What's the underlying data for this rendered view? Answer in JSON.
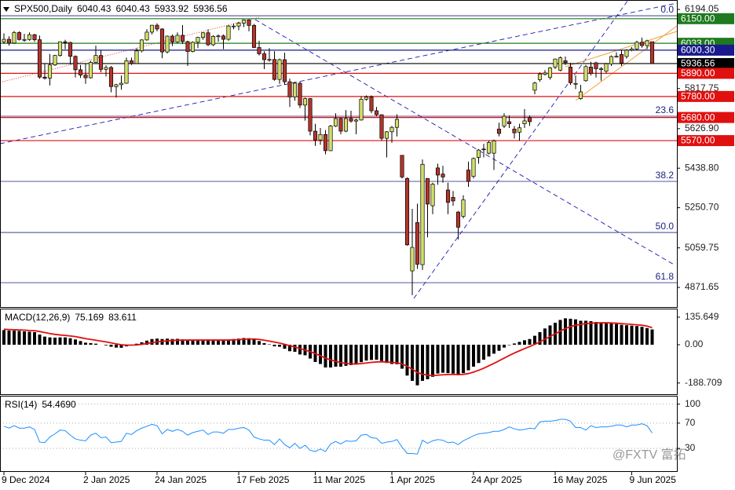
{
  "chart_data": [
    {
      "type": "candlestick",
      "symbol": "SPX500,Daily",
      "header_values": [
        6040.43,
        6040.43,
        5933.92,
        5936.56
      ],
      "categories": [
        "9 Dec 2024",
        null,
        null,
        null,
        null,
        null,
        null,
        null,
        null,
        null,
        null,
        null,
        null,
        null,
        null,
        null,
        "2 Jan 2025",
        null,
        null,
        null,
        null,
        null,
        null,
        null,
        null,
        null,
        null,
        null,
        null,
        null,
        "24 Jan 2025",
        null,
        null,
        null,
        null,
        null,
        null,
        null,
        null,
        null,
        null,
        null,
        null,
        null,
        null,
        null,
        "17 Feb 2025",
        null,
        null,
        null,
        null,
        null,
        null,
        null,
        null,
        null,
        null,
        null,
        null,
        null,
        null,
        "11 Mar 2025",
        null,
        null,
        null,
        null,
        null,
        null,
        null,
        null,
        null,
        null,
        null,
        null,
        null,
        null,
        "1 Apr 2025",
        null,
        null,
        null,
        null,
        null,
        null,
        null,
        null,
        null,
        null,
        null,
        null,
        null,
        null,
        null,
        "24 Apr 2025",
        null,
        null,
        null,
        null,
        null,
        null,
        null,
        null,
        null,
        null,
        null,
        null,
        null,
        null,
        null,
        "16 May 2025",
        null,
        null,
        null,
        null,
        null,
        null,
        null,
        null,
        null,
        null,
        null,
        null,
        null,
        null,
        "9 Jun 2025",
        null,
        null,
        null,
        null
      ],
      "open": [
        6040,
        6052,
        6034,
        6084,
        6051,
        6051,
        6074,
        6050,
        5872,
        5867,
        5930,
        5975,
        6040,
        6037,
        5971,
        5907,
        5882,
        5869,
        5942,
        5975,
        5909,
        5918,
        5827,
        5836,
        5843,
        5950,
        5937,
        5997,
        6049,
        6086,
        6119,
        6101,
        5992,
        6067,
        6039,
        6071,
        6041,
        5994,
        6038,
        6061,
        6083,
        6026,
        6066,
        6068,
        6052,
        6115,
        6115,
        6129,
        6144,
        6118,
        6013,
        5983,
        5955,
        5956,
        5861,
        5955,
        5850,
        5778,
        5843,
        5739,
        5770,
        5615,
        5573,
        5599,
        5522,
        5639,
        5675,
        5615,
        5675,
        5663,
        5668,
        5767,
        5777,
        5712,
        5693,
        5581,
        5612,
        5633,
        5500,
        5390,
        4950,
        5180,
        4980,
        5390,
        5260,
        5440,
        5411,
        5335,
        5300,
        5230,
        5210,
        5430,
        5400,
        5490,
        5530,
        5510,
        5510,
        5625,
        5640,
        5660,
        5625,
        5610,
        5650,
        5680,
        5810,
        5860,
        5885,
        5870,
        5920,
        5905,
        5950,
        5920,
        5840,
        5770,
        5855,
        5920,
        5940,
        5910,
        5900,
        5935,
        5970,
        5980,
        5970,
        6000,
        6006,
        6038,
        6022,
        6040.43
      ],
      "high": [
        6080,
        6066,
        6092,
        6090,
        6078,
        6085,
        6078,
        6070,
        5935,
        5982,
        5978,
        6042,
        6050,
        6040,
        5975,
        5930,
        5935,
        5950,
        6022,
        6000,
        5928,
        5925,
        5840,
        5880,
        5965,
        5965,
        6010,
        6052,
        6100,
        6120,
        6128,
        6105,
        6070,
        6075,
        6085,
        6120,
        6045,
        6042,
        6064,
        6086,
        6100,
        6072,
        6075,
        6075,
        6120,
        6127,
        6135,
        6147,
        6147,
        6125,
        6045,
        5995,
        6010,
        5995,
        5960,
        5988,
        5865,
        5850,
        5850,
        5775,
        5772,
        5650,
        5630,
        5620,
        5645,
        5700,
        5680,
        5715,
        5712,
        5675,
        5780,
        5785,
        5785,
        5730,
        5695,
        5615,
        5640,
        5695,
        5500,
        5395,
        5245,
        5270,
        5480,
        5390,
        5370,
        5460,
        5450,
        5370,
        5330,
        5235,
        5310,
        5470,
        5490,
        5530,
        5555,
        5570,
        5575,
        5655,
        5700,
        5690,
        5640,
        5650,
        5720,
        5690,
        5850,
        5895,
        5905,
        5920,
        5960,
        5970,
        5970,
        5940,
        5880,
        5835,
        5930,
        5945,
        5945,
        5920,
        5940,
        5975,
        5990,
        6000,
        6005,
        6015,
        6045,
        6060,
        6050,
        6040.43
      ],
      "low": [
        6030,
        6022,
        6030,
        6046,
        6040,
        6045,
        6040,
        5865,
        5860,
        5832,
        5925,
        5970,
        6005,
        5932,
        5870,
        5868,
        5840,
        5865,
        5940,
        5895,
        5875,
        5800,
        5775,
        5812,
        5840,
        5930,
        5935,
        5990,
        6045,
        6075,
        6090,
        5962,
        5985,
        6020,
        6035,
        6030,
        5925,
        5990,
        6010,
        6050,
        6020,
        6020,
        6040,
        6005,
        6045,
        6100,
        6095,
        6110,
        6090,
        6010,
        5975,
        5910,
        5945,
        5855,
        5840,
        5835,
        5730,
        5760,
        5725,
        5665,
        5595,
        5545,
        5550,
        5505,
        5520,
        5635,
        5600,
        5610,
        5655,
        5600,
        5665,
        5760,
        5700,
        5685,
        5570,
        5490,
        5560,
        5590,
        5390,
        5070,
        4835,
        4960,
        4955,
        5110,
        5220,
        5360,
        5370,
        5220,
        5260,
        5100,
        5200,
        5350,
        5390,
        5460,
        5490,
        5505,
        5430,
        5590,
        5630,
        5630,
        5580,
        5570,
        5630,
        5640,
        5790,
        5850,
        5880,
        5860,
        5910,
        5900,
        5930,
        5835,
        5815,
        5765,
        5850,
        5880,
        5870,
        5855,
        5890,
        5925,
        5965,
        5925,
        5960,
        5995,
        6000,
        6012,
        6005,
        5933.92
      ],
      "close": [
        6052,
        6034,
        6084,
        6051,
        6051,
        6074,
        6050,
        5872,
        5867,
        5930,
        5975,
        6040,
        6037,
        5971,
        5907,
        5882,
        5869,
        5942,
        5975,
        5909,
        5918,
        5827,
        5836,
        5843,
        5950,
        5937,
        5997,
        6049,
        6086,
        6119,
        6101,
        5992,
        6067,
        6039,
        6071,
        6041,
        5994,
        6038,
        6061,
        6083,
        6026,
        6066,
        6068,
        6052,
        6115,
        6115,
        6129,
        6144,
        6118,
        6013,
        5983,
        5955,
        5956,
        5861,
        5955,
        5850,
        5778,
        5843,
        5739,
        5770,
        5615,
        5573,
        5599,
        5522,
        5639,
        5675,
        5615,
        5675,
        5663,
        5668,
        5767,
        5777,
        5712,
        5693,
        5581,
        5612,
        5633,
        5671,
        5397,
        5074,
        5062,
        4982,
        5457,
        5268,
        5363,
        5406,
        5397,
        5276,
        5283,
        5158,
        5288,
        5376,
        5485,
        5525,
        5529,
        5561,
        5569,
        5604,
        5686,
        5650,
        5607,
        5631,
        5664,
        5660,
        5844,
        5887,
        5892,
        5916,
        5958,
        5964,
        5941,
        5845,
        5842,
        5802,
        5922,
        5889,
        5912,
        5912,
        5936,
        5970,
        5971,
        5939,
        6000,
        6006,
        6038,
        6022,
        6045,
        5936.56
      ],
      "up_color": "#d3df6a",
      "down_color": "#b3352b",
      "ylim": [
        4782,
        6224
      ],
      "yticks": [
        6194.05,
        5817.75,
        {
          "value": 5626.9,
          "label": "5626.90"
        },
        {
          "value": 5438.8,
          "label": "5438.80"
        },
        {
          "value": 5250.7,
          "label": "5250.70"
        },
        5059.75,
        4871.65
      ],
      "levels": [
        {
          "price": {
            "value": 6150,
            "label": "6150.00"
          },
          "color": "#1f7a1f"
        },
        {
          "price": {
            "value": 6033,
            "label": "6033.00"
          },
          "color": "#1f7a1f"
        },
        {
          "price": {
            "value": 6000.3,
            "label": "6000.30"
          },
          "color": "#1a1a8c"
        },
        {
          "price": 5936.56,
          "color": "#000000"
        },
        {
          "price": {
            "value": 5890,
            "label": "5890.00"
          },
          "color": "#e01010"
        },
        {
          "price": {
            "value": 5780,
            "label": "5780.00"
          },
          "color": "#e01010"
        },
        {
          "price": {
            "value": 5680,
            "label": "5680.00"
          },
          "color": "#e01010"
        },
        {
          "price": {
            "value": 5570,
            "label": "5570.00"
          },
          "color": "#e01010"
        }
      ],
      "fib_levels": [
        {
          "ratio": {
            "value": 0,
            "label": "0.0"
          },
          "price": 6164
        },
        {
          "ratio": 23.6,
          "price": 5686
        },
        {
          "ratio": 38.2,
          "price": 5376
        },
        {
          "ratio": {
            "value": 50,
            "label": "50.0"
          },
          "price": 5133
        },
        {
          "ratio": 61.8,
          "price": 4894
        }
      ],
      "fib_color": "#1a237e"
    },
    {
      "type": "macd",
      "title": "MACD(12,26,9)",
      "header_values": [
        75.169,
        83.611
      ],
      "values": [
        72,
        70,
        70,
        68,
        66,
        64,
        62,
        50,
        40,
        36,
        35,
        36,
        36,
        32,
        26,
        18,
        10,
        8,
        5,
        0,
        -3,
        -10,
        -14,
        -15,
        -8,
        -2,
        5,
        12,
        20,
        28,
        30,
        28,
        30,
        28,
        29,
        26,
        22,
        22,
        23,
        25,
        22,
        22,
        23,
        22,
        26,
        28,
        30,
        33,
        32,
        26,
        18,
        8,
        2,
        -8,
        -10,
        -20,
        -32,
        -35,
        -48,
        -52,
        -68,
        -85,
        -95,
        -112,
        -112,
        -108,
        -108,
        -104,
        -100,
        -96,
        -86,
        -78,
        -75,
        -74,
        -80,
        -90,
        -95,
        -96,
        -118,
        -152,
        -178,
        -200,
        -178,
        -170,
        -158,
        -142,
        -138,
        -140,
        -142,
        -150,
        -140,
        -126,
        -108,
        -90,
        -74,
        -58,
        -44,
        -30,
        -14,
        -2,
        6,
        14,
        22,
        28,
        44,
        62,
        80,
        95,
        108,
        122,
        130,
        128,
        125,
        118,
        118,
        116,
        112,
        110,
        108,
        105,
        102,
        98,
        96,
        94,
        92,
        88,
        82,
        75.169
      ],
      "signal": [
        76,
        75,
        74,
        73,
        72,
        70,
        69,
        65,
        60,
        55,
        51,
        48,
        46,
        43,
        40,
        35,
        30,
        26,
        22,
        18,
        14,
        9,
        4,
        0,
        -2,
        -2,
        -1,
        2,
        6,
        10,
        14,
        17,
        19,
        21,
        22,
        23,
        23,
        23,
        23,
        23,
        23,
        23,
        23,
        23,
        23,
        24,
        25,
        27,
        28,
        28,
        26,
        22,
        18,
        13,
        8,
        2,
        -5,
        -11,
        -19,
        -26,
        -34,
        -44,
        -54,
        -66,
        -75,
        -82,
        -88,
        -92,
        -94,
        -95,
        -93,
        -90,
        -87,
        -85,
        -84,
        -85,
        -87,
        -89,
        -95,
        -106,
        -121,
        -137,
        -145,
        -150,
        -152,
        -150,
        -148,
        -147,
        -146,
        -147,
        -146,
        -142,
        -135,
        -126,
        -116,
        -104,
        -92,
        -79,
        -66,
        -53,
        -41,
        -30,
        -19,
        -9,
        2,
        14,
        27,
        41,
        54,
        67,
        80,
        89,
        96,
        100,
        104,
        106,
        107,
        108,
        108,
        107,
        106,
        104,
        102,
        100,
        98,
        96,
        92,
        83.611
      ],
      "color": "#000000",
      "signal_color": "#e01010",
      "ylim": [
        -236,
        174
      ],
      "yticks": [
        135.649,
        {
          "value": 0,
          "label": "0.00"
        },
        -188.709
      ]
    },
    {
      "type": "line",
      "title": "RSI(14)",
      "header_value": {
        "value": 54.469,
        "label": "54.4690"
      },
      "values": [
        65,
        62,
        66,
        62,
        62,
        64,
        60,
        40,
        39,
        48,
        53,
        59,
        58,
        51,
        45,
        43,
        42,
        51,
        54,
        47,
        48,
        39,
        40,
        41,
        54,
        52,
        58,
        62,
        65,
        68,
        66,
        53,
        60,
        57,
        60,
        57,
        51,
        55,
        57,
        59,
        52,
        56,
        56,
        54,
        60,
        60,
        62,
        63,
        59,
        48,
        45,
        43,
        43,
        36,
        45,
        36,
        31,
        38,
        30,
        35,
        27,
        25,
        29,
        25,
        37,
        41,
        37,
        42,
        41,
        42,
        51,
        52,
        47,
        46,
        38,
        40,
        41,
        44,
        32,
        22,
        22,
        21,
        43,
        38,
        42,
        44,
        43,
        39,
        40,
        36,
        42,
        46,
        50,
        53,
        54,
        55,
        57,
        57,
        60,
        64,
        61,
        59,
        60,
        62,
        61,
        72,
        73,
        73,
        74,
        76,
        76,
        73,
        63,
        63,
        59,
        66,
        63,
        64,
        64,
        65,
        67,
        67,
        64,
        67,
        67,
        69,
        66,
        54.469
      ],
      "color": "#1e90ff",
      "ylim": [
        -6,
        112
      ],
      "yticks": [
        100,
        70,
        30
      ]
    }
  ],
  "watermark": "@FXTV 富拓"
}
